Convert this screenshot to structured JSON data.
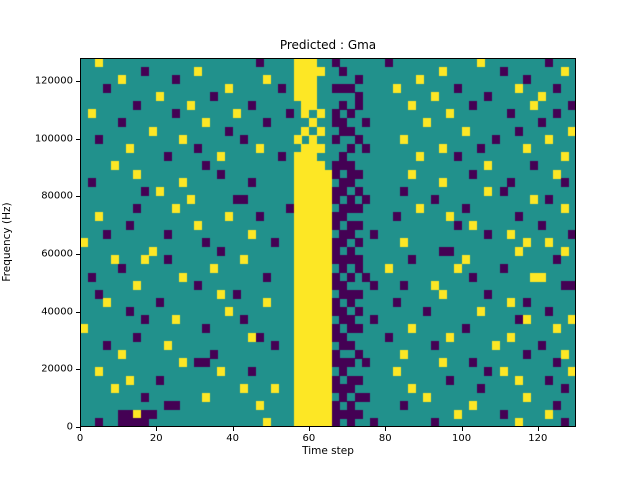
{
  "chart_data": {
    "type": "heatmap",
    "title": "Predicted : Gma",
    "xlabel": "Time step",
    "ylabel": "Frequency (Hz)",
    "xlim": [
      0,
      130
    ],
    "ylim": [
      0,
      128000
    ],
    "xticks": [
      0,
      20,
      40,
      60,
      80,
      100,
      120
    ],
    "yticks": [
      0,
      20000,
      40000,
      60000,
      80000,
      100000,
      120000
    ],
    "grid_on": false,
    "legend": null,
    "colormap": {
      "name": "viridis-3-level",
      "0": "#21918c",
      "1": "#440154",
      "2": "#fde725"
    },
    "value_legend": {
      "0": "background (teal)",
      "1": "low (dark purple)",
      "2": "high (yellow)"
    },
    "grid_shape": {
      "rows": 43,
      "cols": 65,
      "time_steps_per_col": 2,
      "row_order": "top_to_bottom"
    },
    "features": [
      "solid yellow vertical band around time steps 57-66 from 0 Hz up to about 90000 Hz",
      "patchy yellow column continuing above the band up to 128000 Hz",
      "dense dark-purple vertical streak around time steps 66-76",
      "sparse random yellow and purple speckles over teal background",
      "dark purple cluster with yellow specks near bottom-left around time steps 10-18"
    ],
    "grid": [
      "00200 00000 00000 00000 00010 00022 20010 00000 10000 00000 00200 00000 01000",
      "00000 00010 00000 20000 00000 00022 22001 00000 00000 00200 00000 10000 00020",
      "00000 20000 00100 00000 00002 00022 20000 01000 00002 00000 00000 00010 00000",
      "00010 00000 00000 00002 00000 01022 20011 10000 02000 00001 00000 00200 00100",
      "00000 00000 20000 00100 00000 00022 20000 01000 00000 02000 00010 00000 20000",
      "00000 00100 00002 00000 00100 00002 20001 01000 00020 00000 01000 00002 00001",
      "02000 00000 00100 00000 20000 00102 02010 10000 00000 00020 00000 01000 00100",
      "00000 10000 00000 02000 00001 00000 20011 00100 00000 20000 00000 00000 10000",
      "00000 00002 00000 00001 00000 00002 02001 10000 00000 00000 20000 00100 00002",
      "00100 00000 00020 00000 01000 00020 20010 01000 00200 00000 00001 00000 02000",
      "00000 02000 00000 10000 00020 00002 22000 10100 00000 00200 00100 00020 00000",
      "00000 00000 01000 00020 00000 01022 20001 00000 00002 00001 00000 00000 00020",
      "00002 00000 00000 01000 00000 00022 22011 10000 00000 00000 00020 00001 00000",
      "00000 00200 00000 00010 00000 00022 22210 11000 00020 00000 01000 00000 00200",
      "01000 00000 00020 00000 00100 00022 22201 10000 00000 00200 00000 01000 00010",
      "00000 00010 20000 00000 00000 00022 22211 01000 00100 00000 00020 10000 00000",
      "00000 00000 00002 00000 11000 00022 22210 10100 00000 01000 00000 00002 01000",
      "00000 00100 00200 00000 00000 00122 22201 11000 00002 00000 10000 00000 00020",
      "00200 00000 00000 00002 00010 00022 22211 00000 01000 00020 00000 00100 00000",
      "00000 01000 00000 20000 00000 00022 22210 11000 00000 00001 02000 00000 10000",
      "00010 00000 01000 00000 00200 00022 22201 10010 00000 00000 00010 02000 00001",
      "20000 00000 00000 01000 00000 10022 22211 01000 00200 00000 00000 00020 02000",
      "00000 00002 00000 00010 00000 00022 22210 10000 00000 00110 00000 00200 00020",
      "00002 00020 01000 00000 02000 00022 22211 11000 00010 00000 20000 00000 00100",
      "00000 10000 00000 00200 00000 00022 22201 01000 20000 00002 00000 10000 00000",
      "01000 00000 00020 00000 00001 00022 22210 10100 00000 00000 01000 00002 20000",
      "00000 00200 00000 10000 00000 00022 22211 00010 00100 02000 00000 00000 00011",
      "00100 00000 00000 00020 10000 00022 22201 11000 00000 00200 00010 00000 00000",
      "00020 00000 10000 00000 00002 00022 22210 10000 01000 00000 00000 02010 00000",
      "00000 01000 00000 00002 00000 00022 22211 01000 00000 10000 00200 00000 01000",
      "00000 00010 00200 00000 01000 00022 22201 10010 00000 00000 00000 00120 00002",
      "20000 00000 00000 01000 00000 00022 22210 11000 00020 00000 10000 00000 00200",
      "00000 00100 00000 00000 00210 00022 22211 00000 10000 00020 00000 02000 00000",
      "00010 00000 02000 00000 00000 10022 22201 10000 00000 01000 00002 00000 10000",
      "00000 20000 00000 00100 00000 00022 22210 01000 00200 00000 00000 00010 00020",
      "00000 00000 00020 11000 00000 00022 22211 10100 00000 00200 01000 00000 00100",
      "00200 00000 00000 00020 00100 00022 22201 00000 02000 00000 00010 20000 00002",
      "00000 02000 10000 00000 00000 00022 22210 11000 00000 00010 00000 00200 01000",
      "00002 00000 00000 00000 02000 20022 22211 10000 00020 00000 00100 00000 00010",
      "00000 00010 00000 02000 00000 00022 22201 01100 00000 20000 00000 00020 00000",
      "00000 00000 01100 00000 00020 00022 22210 10000 00100 00000 02000 00000 00100",
      "00000 11211 00000 00000 00000 00022 22211 11000 00000 00002 00000 10000 02000",
      "00100 11110 00000 00000 00002 00022 22210 10010 00000 01000 00000 00200 00010"
    ]
  }
}
